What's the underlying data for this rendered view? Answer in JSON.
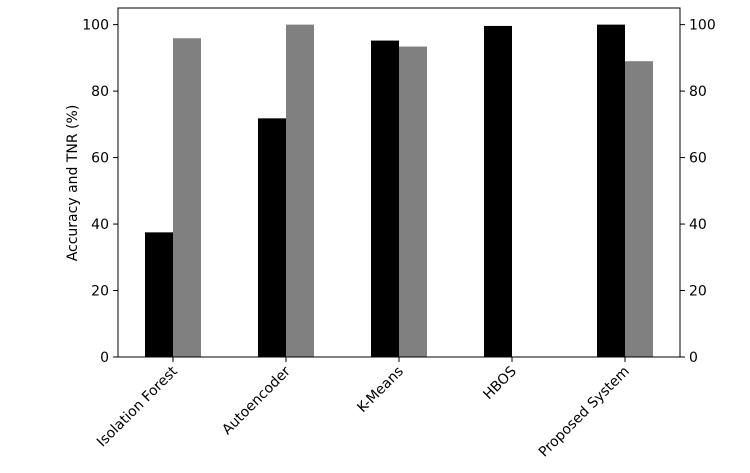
{
  "chart_data": {
    "type": "bar",
    "categories": [
      "Isolation Forest",
      "Autoencoder",
      "K-Means",
      "HBOS",
      "Proposed System"
    ],
    "series": [
      {
        "values": [
          37.5,
          71.8,
          95.2,
          99.6,
          100
        ],
        "color": "#000000"
      },
      {
        "values": [
          95.9,
          100,
          93.4,
          0,
          89.0
        ],
        "color": "#808080"
      }
    ],
    "ylabel": "Accuracy and TNR (%)",
    "ylim": [
      0,
      105
    ],
    "yticks": [
      "0",
      "20",
      "40",
      "60",
      "80",
      "100"
    ],
    "right_yticks": [
      "0",
      "20",
      "40",
      "60",
      "80",
      "100"
    ],
    "grid": false,
    "legend": "none"
  }
}
